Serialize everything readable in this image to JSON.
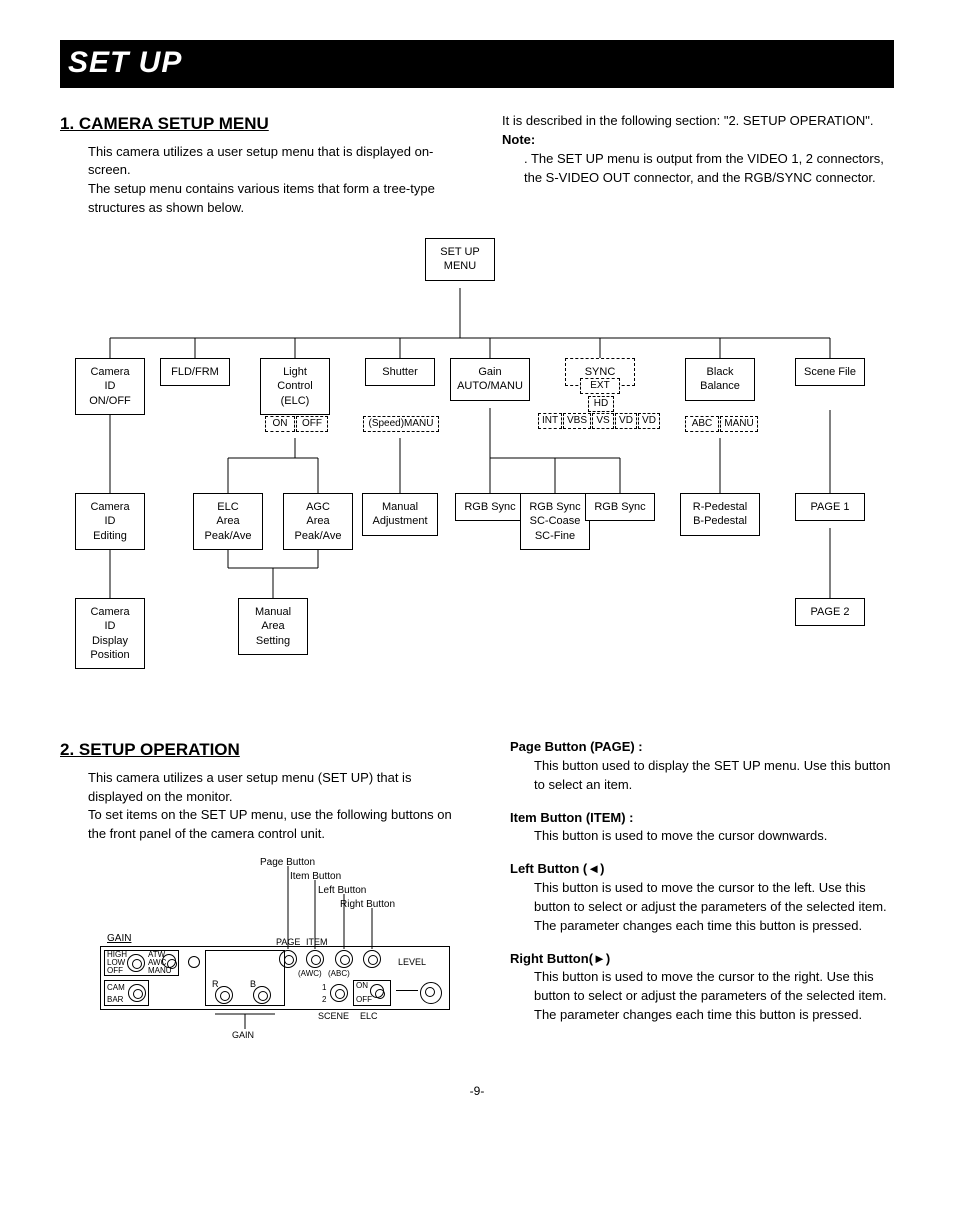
{
  "banner": "SET UP",
  "section1": {
    "title": "1. CAMERA SETUP MENU",
    "para1": "This camera utilizes a user setup menu that is displayed on-screen.",
    "para2": "The setup menu contains various items that form a tree-type structures as shown below.",
    "right1": "It is described in the following section: \"2. SETUP OPERATION\".",
    "note_label": "Note:",
    "note_body": ". The SET UP menu is output from the VIDEO 1, 2 connectors, the S-VIDEO OUT connector, and the RGB/SYNC connector."
  },
  "tree": {
    "root": "SET UP\nMENU",
    "row1": [
      "Camera\nID\nON/OFF",
      "FLD/FRM",
      "Light\nControl\n(ELC)",
      "Shutter",
      "Gain\nAUTO/MANU",
      "SYNC",
      "Black\nBalance",
      "Scene File"
    ],
    "sync_sub": {
      "ext": "EXT",
      "int": "INT",
      "vbs": "VBS",
      "vs": "VS",
      "hd": "HD",
      "vd": "VD",
      "vd2": "VD"
    },
    "elc_sub": {
      "on": "ON",
      "off": "OFF"
    },
    "shutter_sub": "(Speed)MANU",
    "bb_sub": {
      "abc": "ABC",
      "manu": "MANU"
    },
    "row2": [
      "Camera\nID\nEditing",
      "ELC\nArea\nPeak/Ave",
      "AGC\nArea\nPeak/Ave",
      "Manual\nAdjustment",
      "RGB Sync",
      "RGB Sync\nSC-Coase\nSC-Fine",
      "RGB Sync",
      "R-Pedestal\nB-Pedestal",
      "PAGE 1"
    ],
    "row3": [
      "Camera\nID\nDisplay\nPosition",
      "Manual\nArea\nSetting",
      "PAGE 2"
    ]
  },
  "section2": {
    "title": "2. SETUP OPERATION",
    "para1": "This camera utilizes a user setup menu (SET UP) that is displayed on the monitor.",
    "para2": "To set items on the SET UP menu, use the following buttons on the front panel of the camera control unit.",
    "page_btn_title": "Page Button (PAGE) :",
    "page_btn_body": "This button used to display the SET UP menu. Use this button to select an item.",
    "item_btn_title": "Item Button (ITEM) :",
    "item_btn_body": "This button is used to move the cursor downwards.",
    "left_btn_title": "Left Button (◄)",
    "left_btn_body": "This button is used to move the cursor to the left. Use this button to select or adjust the parameters of the selected item. The parameter changes each time this button is pressed.",
    "right_btn_title": "Right Button(►)",
    "right_btn_body": "This button is used to move the cursor to the right. Use this button to select or adjust the parameters of the selected item. The parameter changes each time this button is pressed."
  },
  "panel": {
    "page": "Page Button",
    "item": "Item Button",
    "left": "Left Button",
    "right": "Right Button",
    "gain_u": "GAIN",
    "page_l": "PAGE",
    "item_l": "ITEM",
    "high": "HIGH",
    "low": "LOW",
    "off": "OFF",
    "atw": "ATW",
    "awc": "AWC",
    "manu": "MANU",
    "cam": "CAM",
    "bar": "BAR",
    "r": "R",
    "b": "B",
    "awc2": "(AWC)",
    "abc": "(ABC)",
    "one": "1",
    "two": "2",
    "scene": "SCENE",
    "elc": "ELC",
    "on": "ON",
    "off2": "OFF",
    "level": "LEVEL",
    "gain_b": "GAIN"
  },
  "page_number": "-9-"
}
